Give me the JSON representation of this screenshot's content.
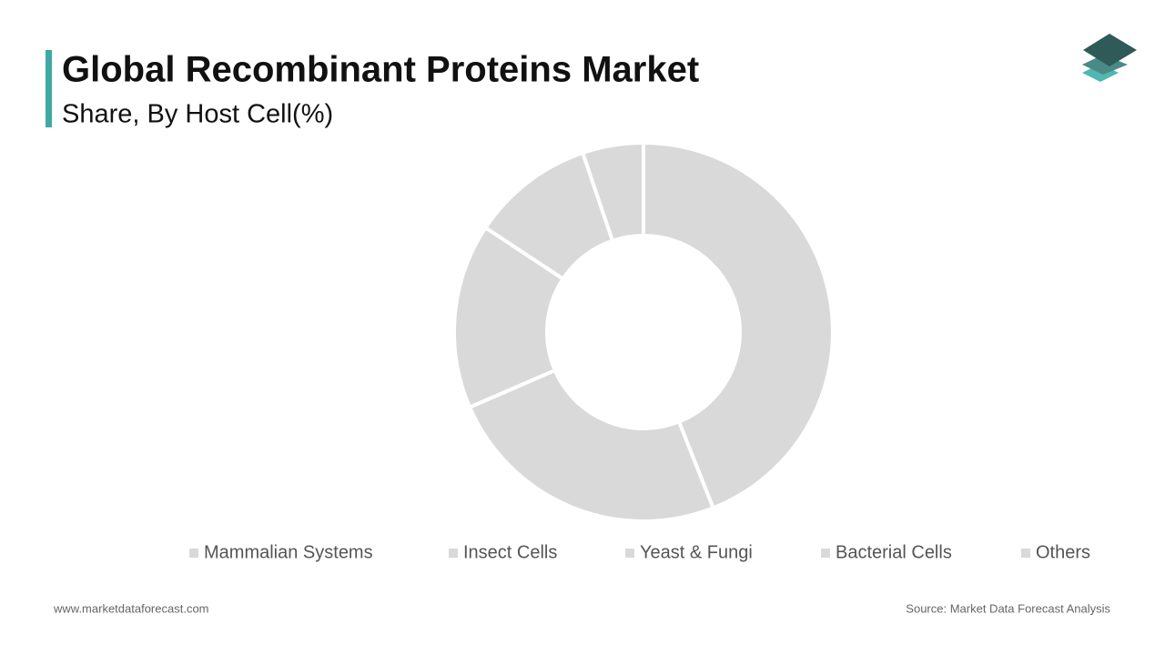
{
  "chart_data": {
    "type": "donut",
    "title": "Global Recombinant Proteins Market",
    "subtitle": "Share, By Host Cell(%)",
    "categories": [
      "Mammalian Systems",
      "Insect Cells",
      "Yeast & Fungi",
      "Bacterial Cells",
      "Others"
    ],
    "values": [
      44,
      24.5,
      15.8,
      10.5,
      5.2
    ],
    "colors": [
      "#d9d9d9",
      "#d9d9d9",
      "#d9d9d9",
      "#d9d9d9",
      "#d9d9d9"
    ],
    "legend": "bottom"
  },
  "footer": {
    "website": "www.marketdataforecast.com",
    "source": "Source: Market Data Forecast Analysis"
  }
}
